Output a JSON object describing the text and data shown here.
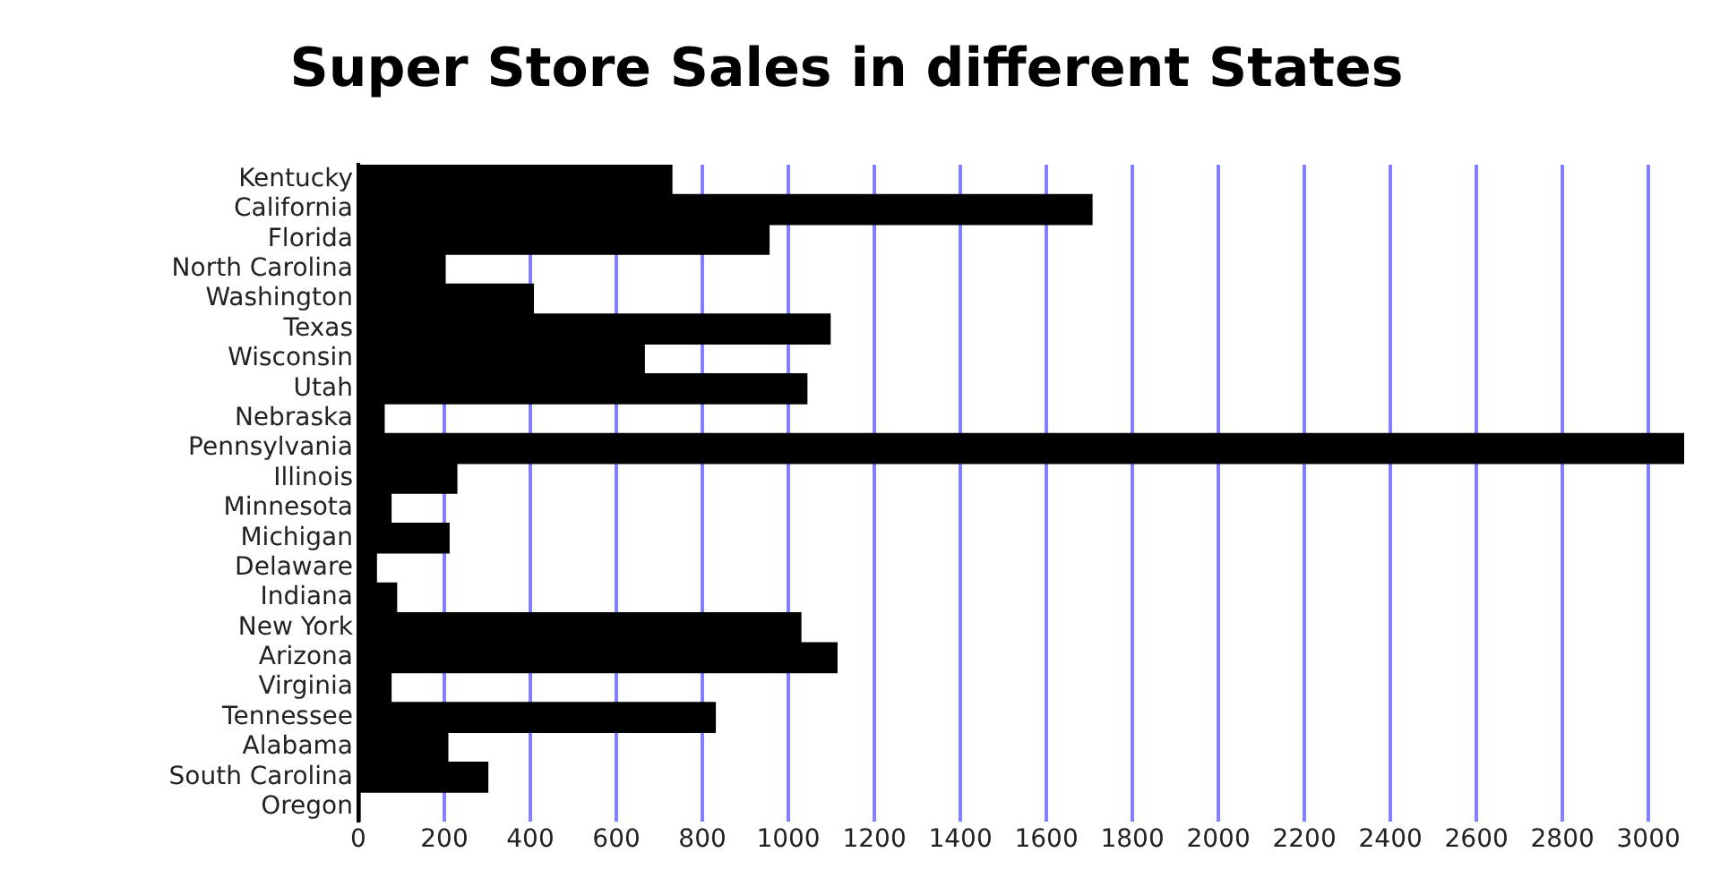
{
  "chart_data": {
    "type": "bar",
    "orientation": "horizontal",
    "title": "Super Store Sales in different States",
    "categories": [
      "Kentucky",
      "California",
      "Florida",
      "North Carolina",
      "Washington",
      "Texas",
      "Wisconsin",
      "Utah",
      "Nebraska",
      "Pennsylvania",
      "Illinois",
      "Minnesota",
      "Michigan",
      "Delaware",
      "Indiana",
      "New York",
      "Arizona",
      "Virginia",
      "Tennessee",
      "Alabama",
      "South Carolina",
      "Oregon"
    ],
    "values": [
      729,
      1706,
      955,
      201,
      407,
      1097,
      665,
      1043,
      60,
      3083,
      229,
      76,
      211,
      42,
      89,
      1029,
      1113,
      76,
      830,
      208,
      301,
      4
    ],
    "color": "#000000",
    "xlim": [
      0,
      3083
    ],
    "xticks": [
      0,
      200,
      400,
      600,
      800,
      1000,
      1200,
      1400,
      1600,
      1800,
      2000,
      2200,
      2400,
      2600,
      2800,
      3000
    ],
    "grid": "x"
  }
}
